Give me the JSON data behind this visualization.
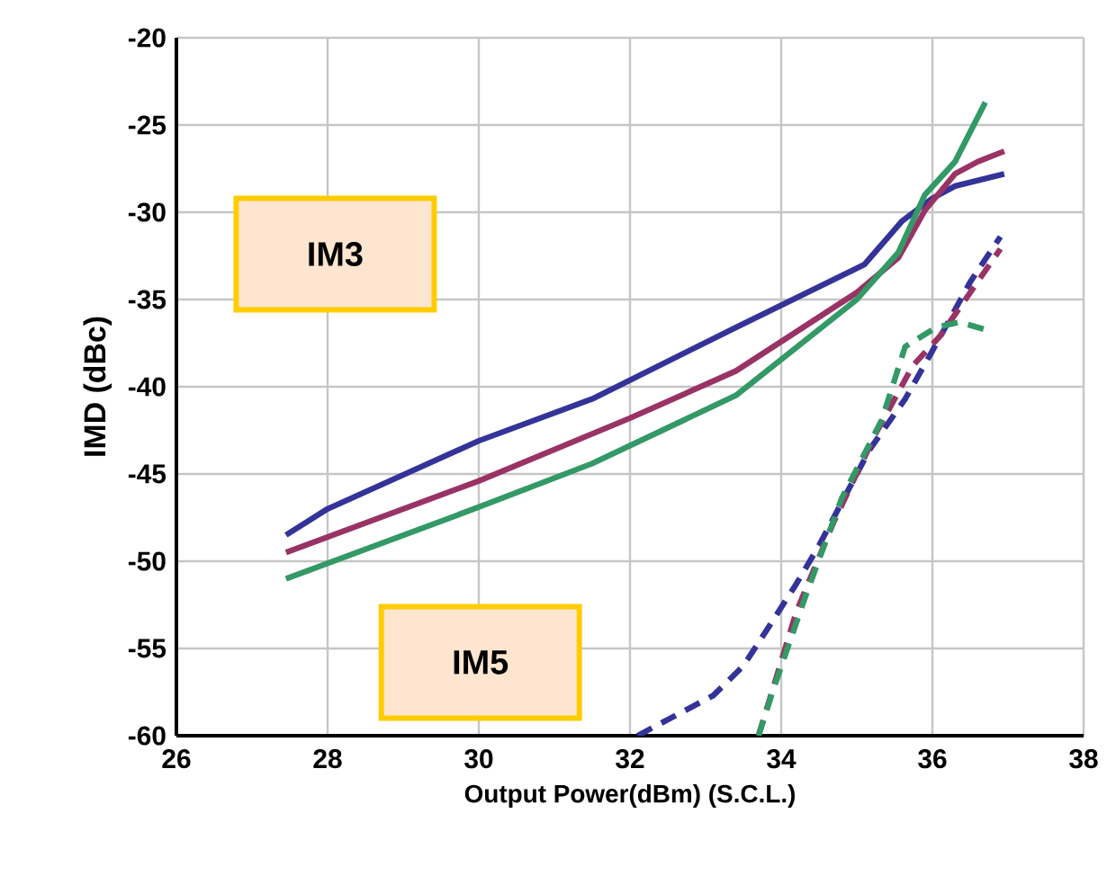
{
  "chart_data": {
    "type": "line",
    "xlabel": "Output Power(dBm)   (S.C.L.)",
    "ylabel": "IMD (dBc)",
    "annotations": [
      "IM3",
      "IM5"
    ],
    "xlim": [
      26,
      38
    ],
    "ylim": [
      -60,
      -20
    ],
    "xticks": [
      26,
      28,
      30,
      32,
      34,
      36,
      38
    ],
    "yticks": [
      -60,
      -55,
      -50,
      -45,
      -40,
      -35,
      -30,
      -25,
      -20
    ],
    "grid": true,
    "series": [
      {
        "color": "#333399",
        "line_style": "solid",
        "x": [
          27.45,
          28,
          30,
          31.5,
          33.4,
          35.1,
          35.6,
          36,
          36.3,
          36.95
        ],
        "values": [
          -48.5,
          -47.0,
          -43.1,
          -40.7,
          -36.6,
          -33.0,
          -30.5,
          -29.2,
          -28.5,
          -27.8
        ]
      },
      {
        "color": "#993366",
        "line_style": "solid",
        "x": [
          27.45,
          30,
          32,
          33.4,
          35,
          35.55,
          35.9,
          36.3,
          36.6,
          36.95
        ],
        "values": [
          -49.5,
          -45.4,
          -41.8,
          -39.1,
          -34.6,
          -32.6,
          -29.9,
          -27.8,
          -27.1,
          -26.5
        ]
      },
      {
        "color": "#339966",
        "line_style": "solid",
        "x": [
          27.45,
          30,
          31.5,
          33.4,
          35,
          35.55,
          35.9,
          36.3,
          36.7
        ],
        "values": [
          -51.0,
          -46.9,
          -44.4,
          -40.5,
          -35.0,
          -32.3,
          -29.0,
          -27.1,
          -23.7
        ]
      },
      {
        "color": "#333399",
        "line_style": "dashed",
        "x": [
          32.1,
          33.1,
          33.5,
          33.86,
          34.2,
          34.5,
          35.17,
          35.64,
          35.98,
          36.5,
          36.9
        ],
        "values": [
          -60.0,
          -57.7,
          -56.0,
          -53.6,
          -51.3,
          -49.1,
          -43.6,
          -40.7,
          -38.1,
          -34.0,
          -31.4
        ]
      },
      {
        "color": "#993366",
        "line_style": "dashed",
        "x": [
          33.7,
          34.2,
          34.7,
          35.26,
          35.74,
          36.1,
          36.5,
          36.9
        ],
        "values": [
          -60.0,
          -52.9,
          -47.7,
          -42.6,
          -38.8,
          -37.1,
          -34.6,
          -32.1
        ]
      },
      {
        "color": "#339966",
        "line_style": "dashed",
        "x": [
          33.7,
          33.9,
          34.33,
          34.8,
          35.33,
          35.64,
          36.05,
          36.36,
          36.76
        ],
        "values": [
          -60.0,
          -57.3,
          -51.9,
          -46.4,
          -41.9,
          -37.7,
          -36.6,
          -36.3,
          -36.8
        ]
      }
    ]
  }
}
